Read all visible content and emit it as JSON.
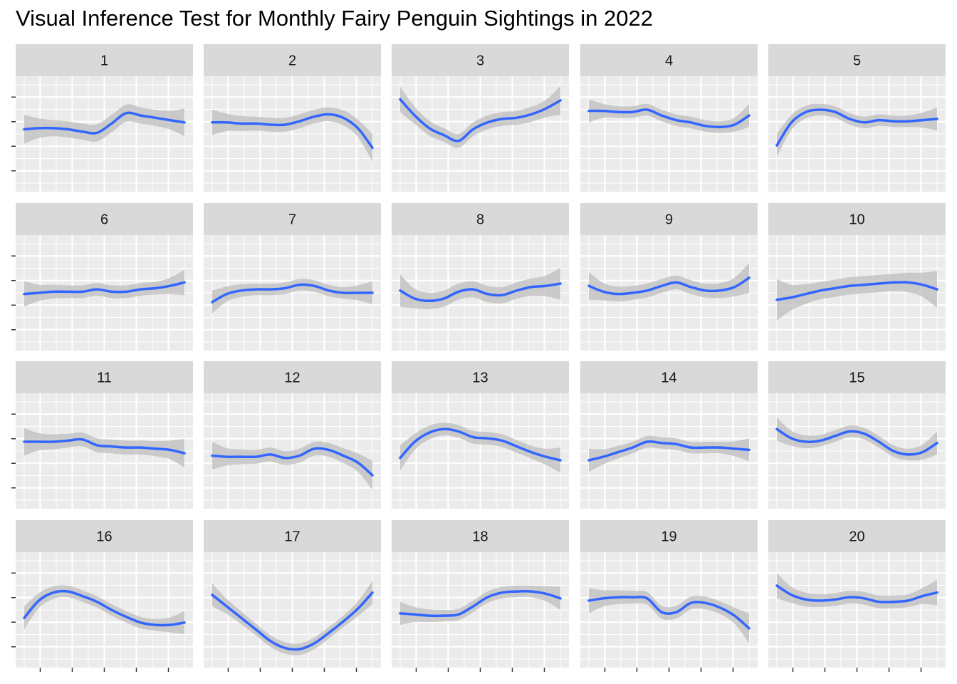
{
  "title": "Visual Inference Test for Monthly Fairy Penguin Sightings in 2022",
  "colors": {
    "panel_bg": "#EBEBEB",
    "strip_bg": "#D9D9D9",
    "grid": "#FFFFFF",
    "line": "#3366FF",
    "ribbon": "#BEBEBE",
    "tick": "#333333"
  },
  "chart_data": {
    "type": "line",
    "facet_layout": "4 rows x 5 columns",
    "smoother": "loess with grey confidence ribbon",
    "xlabel": "",
    "ylabel": "",
    "x_ticks": 5,
    "y_ticks": 4,
    "ylim": [
      0,
      1
    ],
    "x": [
      1,
      2,
      3,
      4,
      5,
      6,
      7,
      8,
      9,
      10,
      11,
      12
    ],
    "grid": true,
    "legend": "none",
    "panels": [
      {
        "label": "1",
        "y": [
          0.54,
          0.55,
          0.55,
          0.54,
          0.52,
          0.51,
          0.59,
          0.68,
          0.66,
          0.64,
          0.62,
          0.6
        ],
        "se": [
          0.25,
          0.17,
          0.14,
          0.14,
          0.14,
          0.15,
          0.15,
          0.15,
          0.14,
          0.14,
          0.16,
          0.24
        ]
      },
      {
        "label": "2",
        "y": [
          0.6,
          0.6,
          0.59,
          0.59,
          0.58,
          0.58,
          0.61,
          0.65,
          0.67,
          0.64,
          0.55,
          0.38
        ],
        "se": [
          0.22,
          0.15,
          0.13,
          0.12,
          0.12,
          0.12,
          0.12,
          0.12,
          0.12,
          0.13,
          0.15,
          0.24
        ]
      },
      {
        "label": "3",
        "y": [
          0.8,
          0.66,
          0.55,
          0.49,
          0.44,
          0.54,
          0.6,
          0.63,
          0.64,
          0.67,
          0.72,
          0.79
        ],
        "se": [
          0.22,
          0.15,
          0.13,
          0.12,
          0.12,
          0.12,
          0.12,
          0.12,
          0.12,
          0.13,
          0.15,
          0.25
        ]
      },
      {
        "label": "4",
        "y": [
          0.7,
          0.7,
          0.69,
          0.69,
          0.71,
          0.66,
          0.62,
          0.6,
          0.57,
          0.56,
          0.58,
          0.66
        ],
        "se": [
          0.2,
          0.12,
          0.1,
          0.1,
          0.1,
          0.1,
          0.1,
          0.1,
          0.1,
          0.1,
          0.12,
          0.2
        ]
      },
      {
        "label": "5",
        "y": [
          0.4,
          0.6,
          0.69,
          0.71,
          0.69,
          0.63,
          0.6,
          0.62,
          0.61,
          0.61,
          0.62,
          0.63
        ],
        "se": [
          0.2,
          0.13,
          0.11,
          0.1,
          0.1,
          0.1,
          0.1,
          0.1,
          0.1,
          0.1,
          0.13,
          0.2
        ]
      },
      {
        "label": "6",
        "y": [
          0.49,
          0.5,
          0.51,
          0.51,
          0.51,
          0.53,
          0.51,
          0.51,
          0.53,
          0.54,
          0.56,
          0.59
        ],
        "se": [
          0.22,
          0.14,
          0.12,
          0.11,
          0.11,
          0.11,
          0.11,
          0.11,
          0.11,
          0.11,
          0.14,
          0.22
        ]
      },
      {
        "label": "7",
        "y": [
          0.42,
          0.49,
          0.52,
          0.53,
          0.53,
          0.54,
          0.57,
          0.56,
          0.52,
          0.5,
          0.5,
          0.5
        ],
        "se": [
          0.2,
          0.13,
          0.11,
          0.1,
          0.1,
          0.1,
          0.1,
          0.1,
          0.1,
          0.1,
          0.13,
          0.2
        ]
      },
      {
        "label": "8",
        "y": [
          0.52,
          0.45,
          0.43,
          0.45,
          0.51,
          0.53,
          0.49,
          0.48,
          0.52,
          0.55,
          0.56,
          0.58
        ],
        "se": [
          0.28,
          0.17,
          0.14,
          0.14,
          0.14,
          0.14,
          0.14,
          0.14,
          0.14,
          0.15,
          0.18,
          0.28
        ]
      },
      {
        "label": "9",
        "y": [
          0.56,
          0.51,
          0.49,
          0.5,
          0.52,
          0.56,
          0.59,
          0.55,
          0.52,
          0.52,
          0.55,
          0.63
        ],
        "se": [
          0.24,
          0.15,
          0.13,
          0.12,
          0.12,
          0.12,
          0.12,
          0.12,
          0.12,
          0.13,
          0.16,
          0.26
        ]
      },
      {
        "label": "10",
        "y": [
          0.44,
          0.46,
          0.49,
          0.52,
          0.54,
          0.56,
          0.57,
          0.58,
          0.59,
          0.59,
          0.57,
          0.53
        ],
        "se": [
          0.36,
          0.22,
          0.17,
          0.15,
          0.15,
          0.15,
          0.15,
          0.15,
          0.15,
          0.17,
          0.21,
          0.32
        ]
      },
      {
        "label": "11",
        "y": [
          0.58,
          0.58,
          0.58,
          0.59,
          0.6,
          0.55,
          0.54,
          0.53,
          0.53,
          0.52,
          0.51,
          0.48
        ],
        "se": [
          0.24,
          0.15,
          0.13,
          0.12,
          0.12,
          0.12,
          0.12,
          0.12,
          0.12,
          0.13,
          0.16,
          0.25
        ]
      },
      {
        "label": "12",
        "y": [
          0.46,
          0.45,
          0.45,
          0.45,
          0.47,
          0.44,
          0.46,
          0.52,
          0.51,
          0.46,
          0.4,
          0.29
        ],
        "se": [
          0.24,
          0.15,
          0.13,
          0.12,
          0.12,
          0.12,
          0.12,
          0.12,
          0.12,
          0.13,
          0.16,
          0.25
        ]
      },
      {
        "label": "13",
        "y": [
          0.44,
          0.58,
          0.66,
          0.69,
          0.67,
          0.62,
          0.61,
          0.59,
          0.54,
          0.49,
          0.45,
          0.42
        ],
        "se": [
          0.22,
          0.14,
          0.12,
          0.11,
          0.11,
          0.11,
          0.11,
          0.11,
          0.11,
          0.11,
          0.14,
          0.22
        ]
      },
      {
        "label": "14",
        "y": [
          0.42,
          0.45,
          0.49,
          0.53,
          0.58,
          0.57,
          0.56,
          0.53,
          0.53,
          0.53,
          0.52,
          0.51
        ],
        "se": [
          0.2,
          0.13,
          0.11,
          0.1,
          0.1,
          0.1,
          0.1,
          0.1,
          0.1,
          0.1,
          0.13,
          0.2
        ]
      },
      {
        "label": "15",
        "y": [
          0.69,
          0.61,
          0.58,
          0.59,
          0.63,
          0.67,
          0.65,
          0.58,
          0.5,
          0.47,
          0.49,
          0.57
        ],
        "se": [
          0.2,
          0.13,
          0.11,
          0.1,
          0.1,
          0.1,
          0.1,
          0.1,
          0.1,
          0.1,
          0.13,
          0.2
        ]
      },
      {
        "label": "16",
        "y": [
          0.43,
          0.58,
          0.65,
          0.66,
          0.62,
          0.57,
          0.5,
          0.44,
          0.39,
          0.37,
          0.37,
          0.39
        ],
        "se": [
          0.2,
          0.13,
          0.11,
          0.1,
          0.1,
          0.1,
          0.1,
          0.1,
          0.1,
          0.1,
          0.13,
          0.2
        ]
      },
      {
        "label": "17",
        "y": [
          0.63,
          0.53,
          0.43,
          0.33,
          0.23,
          0.17,
          0.16,
          0.21,
          0.3,
          0.4,
          0.51,
          0.65
        ],
        "se": [
          0.2,
          0.13,
          0.11,
          0.1,
          0.1,
          0.1,
          0.1,
          0.1,
          0.1,
          0.1,
          0.13,
          0.2
        ]
      },
      {
        "label": "18",
        "y": [
          0.47,
          0.46,
          0.45,
          0.45,
          0.46,
          0.53,
          0.61,
          0.65,
          0.66,
          0.66,
          0.64,
          0.6
        ],
        "se": [
          0.2,
          0.13,
          0.11,
          0.1,
          0.1,
          0.1,
          0.1,
          0.1,
          0.1,
          0.1,
          0.13,
          0.2
        ]
      },
      {
        "label": "19",
        "y": [
          0.58,
          0.6,
          0.61,
          0.61,
          0.6,
          0.48,
          0.48,
          0.56,
          0.56,
          0.52,
          0.45,
          0.34
        ],
        "se": [
          0.22,
          0.14,
          0.12,
          0.11,
          0.11,
          0.11,
          0.11,
          0.11,
          0.11,
          0.11,
          0.14,
          0.26
        ]
      },
      {
        "label": "20",
        "y": [
          0.71,
          0.63,
          0.59,
          0.58,
          0.59,
          0.61,
          0.6,
          0.57,
          0.57,
          0.58,
          0.62,
          0.65
        ],
        "se": [
          0.22,
          0.14,
          0.12,
          0.11,
          0.11,
          0.11,
          0.11,
          0.11,
          0.11,
          0.11,
          0.14,
          0.22
        ]
      }
    ]
  }
}
